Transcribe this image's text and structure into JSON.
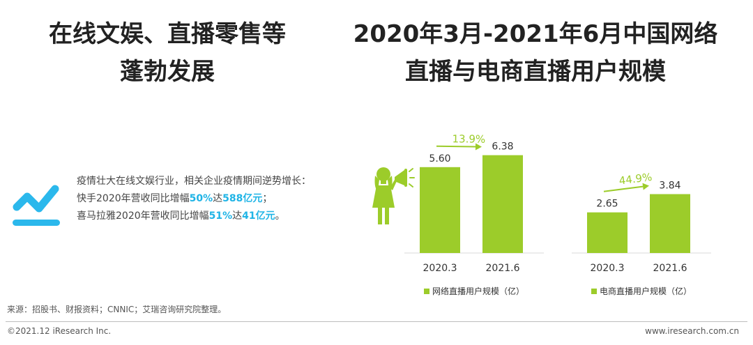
{
  "left_panel": {
    "title_line1": "在线文娱、直播零售等",
    "title_line2": "蓬勃发展",
    "desc_line1": "疫情壮大在线文娱行业，相关企业疫情期间逆势增长：",
    "line2_prefix": "快手2020年营收同比增幅",
    "line2_pct": "50%",
    "line2_mid": "达",
    "line2_amount": "588亿元",
    "line2_suffix": "；",
    "line3_prefix": "喜马拉雅2020年营收同比增幅",
    "line3_pct": "51%",
    "line3_mid": "达",
    "line3_amount": "41亿元",
    "line3_suffix": "。"
  },
  "right_panel": {
    "title_line1": "2020年3月-2021年6月中国网络",
    "title_line2": "直播与电商直播用户规模"
  },
  "colors": {
    "bar": "#9ccc2a",
    "arrow": "#9ccc2a",
    "highlight": "#1fb4e6",
    "icon_blue": "#2bb8ec",
    "woman": "#9ccc2a"
  },
  "icons": [
    "trend-chart-icon",
    "megaphone-woman-icon"
  ],
  "chart_data": [
    {
      "type": "bar",
      "categories": [
        "2020.3",
        "2021.6"
      ],
      "series": [
        {
          "name": "网络直播用户规模（亿）",
          "values": [
            5.6,
            6.38
          ]
        }
      ],
      "data_labels": [
        "5.60",
        "6.38"
      ],
      "growth_label": "13.9%",
      "legend": "bottom"
    },
    {
      "type": "bar",
      "categories": [
        "2020.3",
        "2021.6"
      ],
      "series": [
        {
          "name": "电商直播用户规模（亿）",
          "values": [
            2.65,
            3.84
          ]
        }
      ],
      "data_labels": [
        "2.65",
        "3.84"
      ],
      "growth_label": "44.9%",
      "legend": "bottom"
    }
  ],
  "footer": {
    "source": "来源：招股书、财报资料；CNNIC；艾瑞咨询研究院整理。",
    "copyright": "©2021.12 iResearch Inc.",
    "website": "www.iresearch.com.cn"
  }
}
